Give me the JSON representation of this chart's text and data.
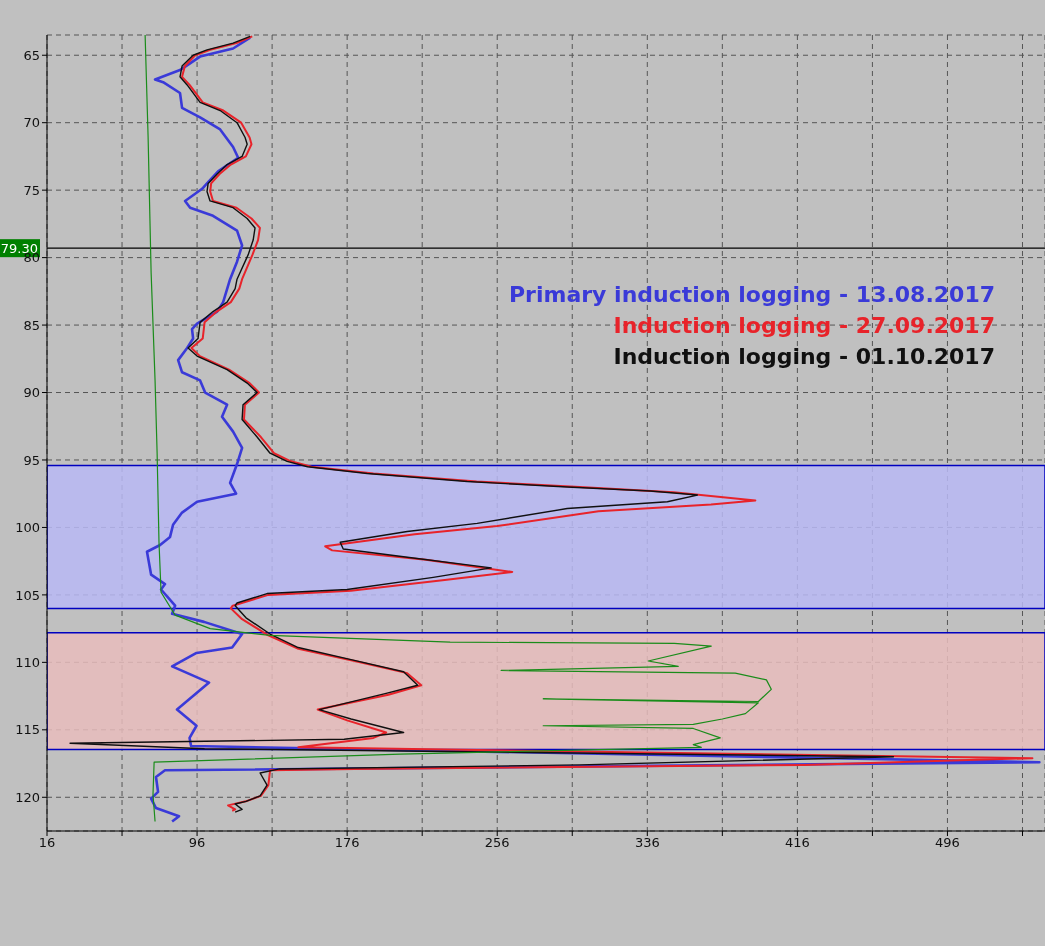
{
  "chart_data": {
    "type": "line",
    "series": [
      {
        "name": "Primary induction logging - 13.08.2017",
        "color": "#3a3ad8",
        "x": [
          124.3,
          115.2,
          97.6,
          86.9,
          73.6,
          77.9,
          86.9,
          88,
          97.6,
          108.3,
          115.2,
          117.9,
          107.2,
          101.3,
          98.7,
          89.6,
          92.3,
          104.5,
          117.3,
          120,
          117.3,
          113.6,
          109.9,
          106.7,
          96,
          93.3,
          93.9,
          90.7,
          85.9,
          88,
          97.6,
          100.3,
          112,
          109.3,
          115.2,
          120,
          117.3,
          113.6,
          116.8,
          96,
          88,
          83.2,
          81.6,
          76.3,
          69.3,
          71.5,
          78.9,
          76.8,
          84.3,
          82.7,
          99.7,
          120,
          114.7,
          95.7,
          82.7,
          102.4,
          85.3,
          95.7,
          92,
          92.8,
          545,
          78.9,
          74.1,
          75.2,
          71.5,
          74.1,
          86.4,
          82.7
        ],
        "values": [
          63.7,
          64.5,
          65.1,
          66.1,
          66.8,
          67.0,
          67.8,
          68.9,
          69.6,
          70.5,
          71.8,
          72.6,
          73.6,
          74.5,
          74.9,
          75.8,
          76.3,
          76.9,
          78.0,
          79.1,
          80.3,
          81.6,
          83.3,
          84.0,
          84.9,
          85.3,
          86.0,
          86.7,
          87.6,
          88.5,
          89.1,
          90.0,
          90.9,
          91.8,
          92.9,
          94.1,
          95.3,
          96.7,
          97.5,
          98.1,
          98.9,
          99.8,
          100.7,
          101.3,
          101.8,
          103.5,
          104.2,
          104.6,
          105.8,
          106.4,
          107.0,
          107.9,
          108.9,
          109.3,
          110.3,
          111.5,
          113.5,
          114.7,
          115.6,
          116.2,
          117.4,
          118.0,
          118.5,
          119.6,
          120.1,
          120.8,
          121.4,
          121.8
        ]
      },
      {
        "name": "Induction logging - 27.09.2017",
        "color": "#e8232a",
        "x": [
          125.4,
          117,
          103,
          95,
          89.5,
          88,
          92,
          99,
          110,
          119.5,
          124,
          125,
          122,
          114,
          108,
          103.5,
          103,
          104.5,
          117,
          125,
          129.5,
          128.5,
          125.5,
          120,
          118.5,
          114,
          106.5,
          100,
          99,
          93,
          97.5,
          113,
          124,
          129,
          121.5,
          121,
          130,
          137,
          146,
          157,
          190,
          245,
          300,
          350,
          393.6,
          370,
          310,
          256,
          212,
          164.3,
          168,
          218,
          264,
          228,
          178,
          134,
          115,
          114,
          120,
          134,
          150,
          180,
          208,
          215.5,
          198,
          160.3,
          176,
          196.8,
          190,
          150,
          541.3,
          420,
          180,
          134.9,
          134,
          130,
          122,
          112.5,
          116.3,
          114.7
        ],
        "values": [
          63.6,
          64.1,
          64.6,
          65.0,
          65.8,
          66.6,
          67.2,
          68.5,
          69.1,
          70.0,
          71.1,
          71.6,
          72.5,
          73.1,
          73.8,
          74.5,
          75.1,
          75.8,
          76.3,
          77.1,
          77.8,
          78.7,
          79.8,
          81.6,
          82.3,
          83.3,
          84.0,
          84.8,
          86.0,
          86.7,
          87.3,
          88.3,
          89.3,
          90.0,
          90.9,
          92.0,
          93.3,
          94.5,
          95.1,
          95.5,
          96.0,
          96.6,
          97.0,
          97.4,
          98.0,
          98.3,
          98.8,
          99.9,
          100.5,
          101.4,
          101.7,
          102.4,
          103.3,
          103.9,
          104.7,
          105.0,
          105.8,
          106.0,
          106.8,
          108.0,
          109.0,
          109.9,
          110.8,
          111.7,
          112.4,
          113.5,
          114.3,
          115.2,
          115.6,
          116.3,
          117.1,
          117.6,
          117.9,
          118.0,
          119.1,
          119.9,
          120.3,
          120.6,
          120.9,
          121.0
        ]
      },
      {
        "name": "Induction logging - 01.10.2017",
        "color": "#101010",
        "x": [
          124.3,
          115.2,
          101.3,
          93.9,
          88,
          86.9,
          90.7,
          97.6,
          108.3,
          117.3,
          121.6,
          122.7,
          120,
          112,
          106.7,
          101.9,
          101.3,
          102.9,
          115.2,
          122.7,
          126.9,
          125.9,
          123.2,
          117.3,
          116.3,
          112,
          104.5,
          97.6,
          96.5,
          91.2,
          96,
          112,
          122.7,
          128,
          120.5,
          120,
          128,
          134.9,
          144,
          154.9,
          186.7,
          240,
          293.3,
          337.6,
          362.7,
          346.7,
          293.3,
          245.3,
          208,
          172.3,
          173.9,
          213.3,
          252.8,
          221.9,
          176,
          133.3,
          117.3,
          116.3,
          122.1,
          134.9,
          149.9,
          178.1,
          206.1,
          213.6,
          196.8,
          161.1,
          178.1,
          206.1,
          174.4,
          28.3,
          100,
          467.2,
          300,
          140,
          129.6,
          133.3,
          129.6,
          122.1,
          116.3,
          120,
          116.3
        ],
        "values": [
          63.6,
          64.1,
          64.6,
          65.0,
          65.8,
          66.6,
          67.2,
          68.5,
          69.1,
          70.0,
          71.1,
          71.6,
          72.5,
          73.1,
          73.8,
          74.5,
          75.1,
          75.8,
          76.3,
          77.1,
          77.8,
          78.7,
          79.8,
          81.6,
          82.3,
          83.3,
          84.0,
          84.8,
          86.0,
          86.7,
          87.3,
          88.3,
          89.3,
          90.0,
          90.9,
          92.0,
          93.3,
          94.5,
          95.1,
          95.5,
          96.0,
          96.6,
          97.0,
          97.3,
          97.6,
          98.1,
          98.6,
          99.7,
          100.3,
          101.1,
          101.6,
          102.3,
          103.0,
          103.7,
          104.6,
          104.9,
          105.6,
          105.8,
          106.7,
          107.9,
          108.9,
          109.8,
          110.7,
          111.7,
          112.3,
          113.5,
          114.2,
          115.2,
          115.7,
          116.0,
          116.4,
          117.0,
          117.6,
          117.9,
          118.2,
          119.1,
          119.9,
          120.3,
          120.5,
          120.9,
          121.1
        ]
      },
      {
        "color": "#1a8c1a",
        "x": [
          68.3,
          69.9,
          71.5,
          73.6,
          74.7,
          75.7,
          76.8,
          84.3,
          103,
          134.9,
          230.9,
          350.4,
          370.1,
          336.5,
          352.5,
          258.1,
          382.9,
          399.5,
          402.1,
          395.2,
          280.5,
          395.2,
          388.3,
          376,
          360.5,
          280.5,
          360.5,
          374.9,
          360.5,
          364.8,
          204.3,
          73.1,
          72.5,
          73.6
        ],
        "values": [
          63.5,
          71.1,
          81.1,
          89.1,
          94.5,
          101.1,
          104.8,
          106.5,
          107.5,
          108.0,
          108.5,
          108.6,
          108.8,
          109.9,
          110.3,
          110.6,
          110.8,
          111.3,
          112.0,
          112.9,
          112.7,
          113.0,
          113.8,
          114.2,
          114.6,
          114.7,
          114.9,
          115.6,
          116.1,
          116.3,
          116.8,
          117.4,
          119.8,
          121.8
        ]
      }
    ],
    "xlim": [
      16,
      548
    ],
    "xticks": [
      16,
      {
        "value": 56,
        "label": null
      },
      96,
      {
        "value": 136,
        "label": null
      },
      176,
      {
        "value": 216,
        "label": null
      },
      256,
      {
        "value": 296,
        "label": null
      },
      336,
      {
        "value": 376,
        "label": null
      },
      416,
      {
        "value": 456,
        "label": null
      },
      496,
      {
        "value": 536,
        "label": null
      }
    ],
    "ylim": [
      122.5,
      63.5
    ],
    "yticks": [
      65,
      70,
      75,
      80,
      85,
      90,
      95,
      100,
      105,
      110,
      115,
      120
    ],
    "ref_lines": [
      {
        "axis": "y",
        "value": 79.3,
        "label": "79.30",
        "color": "#000000"
      }
    ],
    "bands": [
      {
        "axis": "y",
        "from": 95.4,
        "to": 106.0,
        "color": "#b9b9f5"
      },
      {
        "axis": "y",
        "from": 107.8,
        "to": 116.45,
        "color": "#e8bcbc"
      }
    ],
    "grid": true,
    "legend": "top right",
    "marker": "none",
    "line_style": "solid"
  }
}
